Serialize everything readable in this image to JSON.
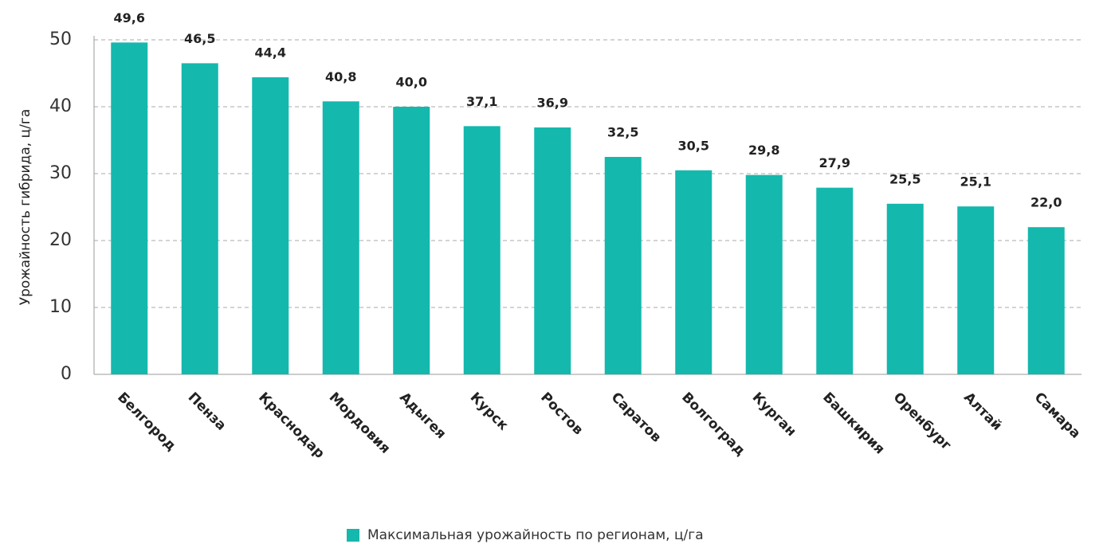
{
  "chart_data": {
    "type": "bar",
    "y_label": "Урожайность гибрида, ц/га",
    "categories": [
      "Белгород",
      "Пенза",
      "Краснодар",
      "Мордовия",
      "Адыгея",
      "Курск",
      "Ростов",
      "Саратов",
      "Волгоград",
      "Курган",
      "Башкирия",
      "Оренбург",
      "Алтай",
      "Самара"
    ],
    "series": [
      {
        "name": "Максимальная урожайность по регионам, ц/га",
        "color": "#14b8ad",
        "values": [
          49.6,
          46.5,
          44.4,
          40.8,
          40.0,
          37.1,
          36.9,
          32.5,
          30.5,
          29.8,
          27.9,
          25.5,
          25.1,
          22.0
        ],
        "value_labels": [
          "49,6",
          "46,5",
          "44,4",
          "40,8",
          "40,0",
          "37,1",
          "36,9",
          "32,5",
          "30,5",
          "29,8",
          "27,9",
          "25,5",
          "25,1",
          "22,0"
        ]
      }
    ],
    "ylim": [
      0,
      50
    ],
    "yticks": [
      0,
      10,
      20,
      30,
      40,
      50
    ],
    "grid": true,
    "legend": "bottom"
  }
}
